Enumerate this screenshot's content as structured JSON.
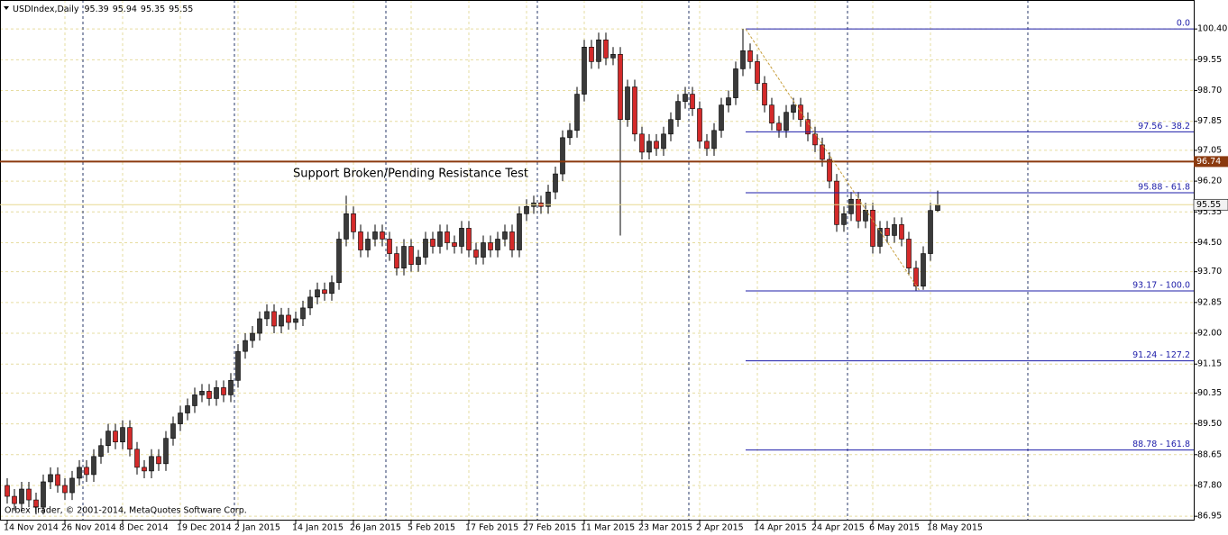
{
  "chart_data": {
    "type": "candlestick",
    "symbol": "USDIndex,Daily",
    "annotation": "Support Broken/Pending Resistance Test",
    "copyright": "Orbex Trader, © 2001-2014, MetaQuotes Software Corp.",
    "up_color": "#3a3a3a",
    "down_color": "#d42a2a",
    "wick_color": "#000000",
    "grid": true,
    "categories": [
      "14 Nov 2014",
      null,
      null,
      null,
      null,
      null,
      null,
      null,
      "26 Nov 2014",
      null,
      null,
      null,
      null,
      null,
      null,
      null,
      "8 Dec 2014",
      null,
      null,
      null,
      null,
      null,
      null,
      null,
      "19 Dec 2014",
      null,
      null,
      null,
      null,
      null,
      null,
      null,
      "2 Jan 2015",
      null,
      null,
      null,
      null,
      null,
      null,
      null,
      "14 Jan 2015",
      null,
      null,
      null,
      null,
      null,
      null,
      null,
      "26 Jan 2015",
      null,
      null,
      null,
      null,
      null,
      null,
      null,
      "5 Feb 2015",
      null,
      null,
      null,
      null,
      null,
      null,
      null,
      "17 Feb 2015",
      null,
      null,
      null,
      null,
      null,
      null,
      null,
      "27 Feb 2015",
      null,
      null,
      null,
      null,
      null,
      null,
      null,
      "11 Mar 2015",
      null,
      null,
      null,
      null,
      null,
      null,
      null,
      "23 Mar 2015",
      null,
      null,
      null,
      null,
      null,
      null,
      null,
      "2 Apr 2015",
      null,
      null,
      null,
      null,
      null,
      null,
      null,
      "14 Apr 2015",
      null,
      null,
      null,
      null,
      null,
      null,
      null,
      "24 Apr 2015",
      null,
      null,
      null,
      null,
      null,
      null,
      null,
      "6 May 2015",
      null,
      null,
      null,
      null,
      null,
      null,
      null,
      "18 May 2015",
      null
    ],
    "open": [
      87.8,
      87.5,
      87.3,
      87.7,
      87.4,
      87.2,
      87.9,
      88.1,
      87.8,
      87.6,
      88.0,
      88.3,
      88.1,
      88.6,
      88.9,
      89.3,
      89.0,
      89.4,
      88.8,
      88.3,
      88.2,
      88.6,
      88.4,
      89.1,
      89.5,
      89.8,
      90.0,
      90.3,
      90.4,
      90.2,
      90.5,
      90.3,
      90.7,
      91.5,
      91.8,
      92.0,
      92.4,
      92.6,
      92.2,
      92.5,
      92.3,
      92.4,
      92.7,
      93.0,
      93.2,
      93.1,
      93.4,
      94.6,
      95.3,
      94.8,
      94.3,
      94.6,
      94.8,
      94.6,
      94.2,
      93.8,
      94.4,
      93.9,
      94.1,
      94.6,
      94.4,
      94.8,
      94.5,
      94.4,
      94.9,
      94.3,
      94.1,
      94.5,
      94.3,
      94.6,
      94.8,
      94.3,
      95.3,
      95.5,
      95.6,
      95.5,
      95.9,
      96.4,
      97.4,
      97.6,
      98.6,
      99.9,
      99.5,
      100.1,
      99.6,
      99.7,
      97.9,
      98.8,
      97.5,
      97.0,
      97.3,
      97.1,
      97.5,
      97.9,
      98.4,
      98.6,
      98.2,
      97.3,
      97.1,
      97.6,
      98.3,
      98.5,
      99.3,
      99.8,
      99.5,
      98.9,
      98.3,
      97.8,
      97.6,
      98.1,
      98.3,
      97.9,
      97.5,
      97.2,
      96.8,
      96.2,
      95.0,
      95.3,
      95.7,
      95.1,
      95.4,
      94.4,
      94.9,
      94.7,
      95.0,
      94.6,
      93.8,
      93.3,
      94.2,
      95.39
    ],
    "high": [
      88.0,
      87.7,
      87.9,
      87.9,
      87.6,
      88.1,
      88.3,
      88.3,
      88.0,
      88.2,
      88.5,
      88.5,
      88.8,
      89.1,
      89.5,
      89.5,
      89.6,
      89.6,
      89.0,
      88.5,
      88.8,
      88.8,
      89.3,
      89.7,
      90.0,
      90.2,
      90.5,
      90.6,
      90.6,
      90.7,
      90.7,
      90.9,
      91.7,
      92.0,
      92.2,
      92.6,
      92.8,
      92.8,
      92.7,
      92.7,
      92.6,
      92.9,
      93.2,
      93.4,
      93.4,
      93.6,
      94.8,
      95.8,
      95.5,
      95.0,
      94.8,
      95.0,
      95.0,
      94.8,
      94.4,
      94.6,
      94.6,
      94.3,
      94.8,
      94.8,
      95.0,
      95.0,
      94.7,
      95.1,
      95.1,
      94.5,
      94.7,
      94.7,
      94.8,
      95.0,
      95.0,
      95.5,
      95.7,
      95.8,
      95.8,
      96.1,
      96.6,
      97.6,
      97.8,
      98.8,
      100.1,
      100.1,
      100.3,
      100.3,
      99.9,
      99.9,
      99.0,
      99.0,
      97.7,
      97.5,
      97.5,
      97.7,
      98.1,
      98.6,
      98.8,
      98.8,
      98.4,
      97.5,
      97.8,
      98.5,
      98.7,
      99.5,
      100.4,
      100.0,
      99.7,
      99.1,
      98.5,
      98.0,
      98.3,
      98.5,
      98.5,
      98.1,
      97.7,
      97.4,
      97.0,
      96.4,
      95.5,
      95.9,
      95.9,
      95.6,
      95.6,
      95.1,
      95.1,
      95.2,
      95.2,
      94.8,
      94.0,
      94.4,
      95.6,
      95.94
    ],
    "low": [
      87.3,
      87.1,
      87.1,
      87.2,
      87.0,
      87.0,
      87.7,
      87.6,
      87.4,
      87.4,
      87.8,
      87.9,
      87.9,
      88.4,
      88.7,
      88.8,
      88.8,
      88.6,
      88.1,
      88.0,
      88.0,
      88.2,
      88.2,
      88.9,
      89.3,
      89.6,
      89.8,
      90.1,
      90.0,
      90.0,
      90.1,
      90.1,
      90.5,
      91.3,
      91.6,
      91.8,
      92.2,
      92.0,
      92.0,
      92.1,
      92.1,
      92.2,
      92.5,
      92.8,
      92.9,
      92.9,
      93.2,
      94.4,
      94.6,
      94.1,
      94.1,
      94.4,
      94.4,
      94.0,
      93.6,
      93.6,
      93.7,
      93.7,
      93.9,
      94.2,
      94.2,
      94.3,
      94.2,
      94.2,
      94.1,
      93.9,
      93.9,
      94.1,
      94.1,
      94.4,
      94.1,
      94.1,
      95.1,
      95.3,
      95.3,
      95.3,
      95.7,
      96.2,
      97.2,
      97.4,
      98.4,
      99.3,
      99.3,
      99.4,
      99.4,
      94.7,
      97.7,
      97.3,
      96.8,
      96.8,
      96.9,
      96.9,
      97.3,
      97.7,
      98.2,
      98.0,
      97.1,
      96.9,
      96.9,
      97.4,
      98.1,
      98.3,
      99.1,
      99.3,
      98.7,
      98.1,
      97.6,
      97.4,
      97.4,
      97.9,
      97.7,
      97.3,
      97.0,
      96.6,
      96.0,
      94.8,
      94.8,
      95.1,
      94.9,
      94.9,
      94.2,
      94.2,
      94.5,
      94.5,
      94.4,
      93.6,
      93.17,
      93.2,
      94.0,
      95.35
    ],
    "close": [
      87.5,
      87.3,
      87.7,
      87.4,
      87.2,
      87.9,
      88.1,
      87.8,
      87.6,
      88.0,
      88.3,
      88.1,
      88.6,
      88.9,
      89.3,
      89.0,
      89.4,
      88.8,
      88.3,
      88.2,
      88.6,
      88.4,
      89.1,
      89.5,
      89.8,
      90.0,
      90.3,
      90.4,
      90.2,
      90.5,
      90.3,
      90.7,
      91.5,
      91.8,
      92.0,
      92.4,
      92.6,
      92.2,
      92.5,
      92.3,
      92.4,
      92.7,
      93.0,
      93.2,
      93.1,
      93.4,
      94.6,
      95.3,
      94.8,
      94.3,
      94.6,
      94.8,
      94.6,
      94.2,
      93.8,
      94.4,
      93.9,
      94.1,
      94.6,
      94.4,
      94.8,
      94.5,
      94.4,
      94.9,
      94.3,
      94.1,
      94.5,
      94.3,
      94.6,
      94.8,
      94.3,
      95.3,
      95.5,
      95.6,
      95.5,
      95.9,
      96.4,
      97.4,
      97.6,
      98.6,
      99.9,
      99.5,
      100.1,
      99.6,
      99.7,
      97.9,
      98.8,
      97.5,
      97.0,
      97.3,
      97.1,
      97.5,
      97.9,
      98.4,
      98.6,
      98.2,
      97.3,
      97.1,
      97.6,
      98.3,
      98.5,
      99.3,
      99.8,
      99.5,
      98.9,
      98.3,
      97.8,
      97.6,
      98.1,
      98.3,
      97.9,
      97.5,
      97.2,
      96.8,
      96.2,
      95.0,
      95.3,
      95.7,
      95.1,
      95.4,
      94.4,
      94.9,
      94.7,
      95.0,
      94.6,
      93.8,
      93.3,
      94.2,
      95.39,
      95.55
    ],
    "ylim": [
      86.83,
      101.2
    ],
    "yticks": [
      {
        "value": 100.4,
        "label": "100.40"
      },
      99.55,
      {
        "value": 98.7,
        "label": "98.70"
      },
      97.85,
      97.05,
      {
        "value": 96.2,
        "label": "96.20"
      },
      95.35,
      {
        "value": 94.5,
        "label": "94.50"
      },
      {
        "value": 93.7,
        "label": "93.70"
      },
      92.85,
      {
        "value": 92.0,
        "label": "92.00"
      },
      91.15,
      90.35,
      {
        "value": 89.5,
        "label": "89.50"
      },
      88.65,
      {
        "value": 87.8,
        "label": "87.80"
      },
      86.95
    ],
    "fib_levels": [
      {
        "value": 100.4,
        "label": "0.0"
      },
      {
        "value": 97.56,
        "label": "97.56 - 38.2"
      },
      {
        "value": 95.88,
        "label": "95.88 - 61.8"
      },
      {
        "value": 93.17,
        "label": "93.17 - 100.0"
      },
      {
        "value": 91.24,
        "label": "91.24 - 127.2"
      },
      {
        "value": 88.78,
        "label": "88.78 - 161.8"
      }
    ],
    "fib_color": "#1c1ca8",
    "hlines": [
      {
        "value": 96.74,
        "color": "#8b3a0f"
      }
    ],
    "price_line_color": "#e8d890"
  }
}
